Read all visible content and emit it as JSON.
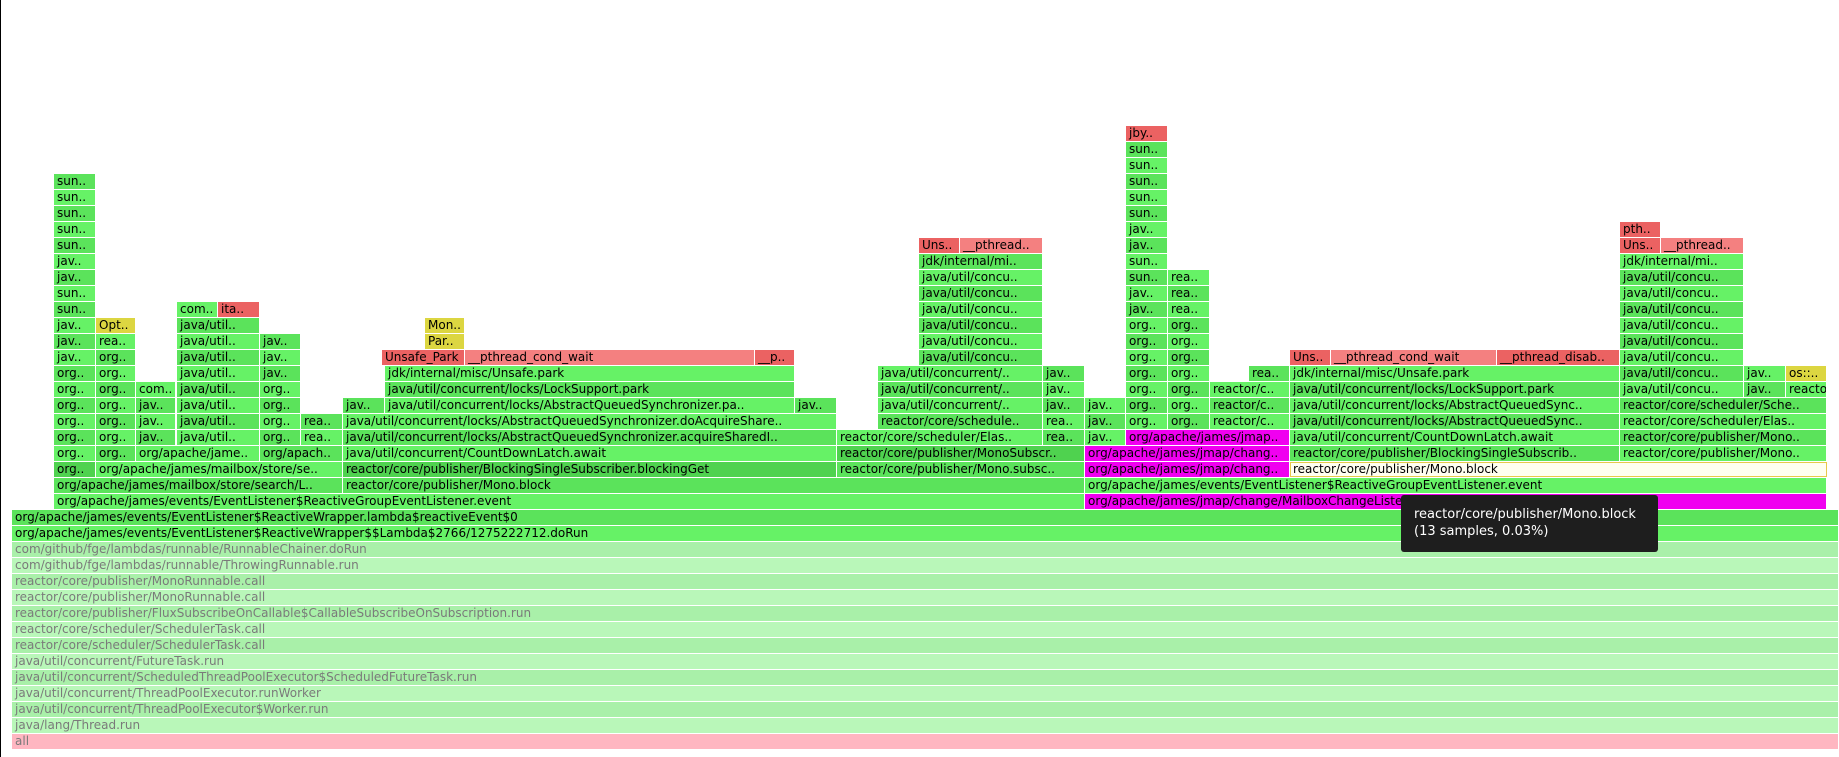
{
  "colors": {
    "G1": "#66f266",
    "G2": "#5be35b",
    "G3": "#4fd24f",
    "Y": "#dcd641",
    "R": "#eb6262",
    "LR": "#f48080",
    "M": "#f000f0",
    "P1": "#a9f0a9",
    "P2": "#b9f7b9",
    "PK": "#ffb6c1",
    "S": "#fffff0"
  },
  "tooltip": {
    "title": "reactor/core/publisher/Mono.block",
    "detail": "(13 samples, 0.03%)"
  },
  "frames": [
    [
      "all",
      12,
      1827,
      0,
      "PK",
      1
    ],
    [
      "java/lang/Thread.run",
      12,
      1827,
      1,
      "P2",
      1
    ],
    [
      "java/util/concurrent/ThreadPoolExecutor$Worker.run",
      12,
      1827,
      2,
      "P1",
      1
    ],
    [
      "java/util/concurrent/ThreadPoolExecutor.runWorker",
      12,
      1827,
      3,
      "P2",
      1
    ],
    [
      "java/util/concurrent/ScheduledThreadPoolExecutor$ScheduledFutureTask.run",
      12,
      1827,
      4,
      "P1",
      1
    ],
    [
      "java/util/concurrent/FutureTask.run",
      12,
      1827,
      5,
      "P2",
      1
    ],
    [
      "reactor/core/scheduler/SchedulerTask.call",
      12,
      1827,
      6,
      "P1",
      1
    ],
    [
      "reactor/core/scheduler/SchedulerTask.call",
      12,
      1827,
      7,
      "P2",
      1
    ],
    [
      "reactor/core/publisher/FluxSubscribeOnCallable$CallableSubscribeOnSubscription.run",
      12,
      1827,
      8,
      "P1",
      1
    ],
    [
      "reactor/core/publisher/MonoRunnable.call",
      12,
      1827,
      9,
      "P2",
      1
    ],
    [
      "reactor/core/publisher/MonoRunnable.call",
      12,
      1827,
      10,
      "P1",
      1
    ],
    [
      "com/github/fge/lambdas/runnable/ThrowingRunnable.run",
      12,
      1827,
      11,
      "P2",
      1
    ],
    [
      "com/github/fge/lambdas/runnable/RunnableChainer.doRun",
      12,
      1827,
      12,
      "P1",
      1
    ],
    [
      "org/apache/james/events/EventListener$ReactiveWrapper$$Lambda$2766/1275222712.doRun",
      12,
      1827,
      13,
      "G1",
      0
    ],
    [
      "org/apache/james/events/EventListener$ReactiveWrapper.lambda$reactiveEvent$0",
      12,
      1827,
      14,
      "G2",
      0
    ],
    [
      "org/apache/james/events/EventListener$ReactiveGroupEventListener.event",
      54,
      1031,
      15,
      "G1",
      0
    ],
    [
      "org/apache/james/jmap/change/MailboxChangeListener.event",
      1085,
      742,
      15,
      "M",
      0
    ],
    [
      "org/apache/james/mailbox/store/search/L..",
      54,
      289,
      16,
      "G2",
      0
    ],
    [
      "reactor/core/publisher/Mono.block",
      343,
      742,
      16,
      "G2",
      0
    ],
    [
      "org/apache/james/events/EventListener$ReactiveGroupEventListener.event",
      1085,
      742,
      16,
      "G1",
      0
    ],
    [
      "org..",
      54,
      42,
      17,
      "G3",
      0
    ],
    [
      "org/apache/james/mailbox/store/se..",
      96,
      247,
      17,
      "G1",
      0
    ],
    [
      "reactor/core/publisher/BlockingSingleSubscriber.blockingGet",
      343,
      494,
      17,
      "G3",
      0
    ],
    [
      "reactor/core/publisher/Mono.subsc..",
      837,
      248,
      17,
      "G2",
      0
    ],
    [
      "org/apache/james/jmap/chang..",
      1085,
      205,
      17,
      "M",
      0
    ],
    [
      "reactor/core/publisher/Mono.block",
      1290,
      537,
      17,
      "S",
      0
    ],
    [
      "org..",
      54,
      42,
      18,
      "G1",
      0
    ],
    [
      "org..",
      96,
      40,
      18,
      "G2",
      0
    ],
    [
      "org/apache/jame..",
      136,
      124,
      18,
      "G1",
      0
    ],
    [
      "org/apach..",
      260,
      83,
      18,
      "G2",
      0
    ],
    [
      "java/util/concurrent/CountDownLatch.await",
      343,
      494,
      18,
      "G1",
      0
    ],
    [
      "reactor/core/publisher/MonoSubscr..",
      837,
      248,
      18,
      "G3",
      0
    ],
    [
      "org/apache/james/jmap/chang..",
      1085,
      205,
      18,
      "M",
      0
    ],
    [
      "reactor/core/publisher/BlockingSingleSubscrib..",
      1290,
      330,
      18,
      "G2",
      0
    ],
    [
      "reactor/core/publisher/Mono..",
      1620,
      207,
      18,
      "G1",
      0
    ],
    [
      "org..",
      54,
      42,
      19,
      "G2",
      0
    ],
    [
      "org..",
      96,
      40,
      19,
      "G1",
      0
    ],
    [
      "jav..",
      136,
      40,
      19,
      "G2",
      0
    ],
    [
      "java/util..",
      177,
      83,
      19,
      "G1",
      0
    ],
    [
      "org..",
      260,
      41,
      19,
      "G2",
      0
    ],
    [
      "rea..",
      301,
      42,
      19,
      "G1",
      0
    ],
    [
      "java/util/concurrent/locks/AbstractQueuedSynchronizer.acquireSharedI..",
      343,
      494,
      19,
      "G2",
      0
    ],
    [
      "reactor/core/scheduler/Elas..",
      837,
      206,
      19,
      "G1",
      0
    ],
    [
      "rea..",
      1043,
      42,
      19,
      "G2",
      0
    ],
    [
      "jav..",
      1085,
      41,
      19,
      "G1",
      0
    ],
    [
      "org/apache/james/jmap..",
      1126,
      164,
      19,
      "M",
      0
    ],
    [
      "java/util/concurrent/CountDownLatch.await",
      1290,
      330,
      19,
      "G1",
      0
    ],
    [
      "reactor/core/publisher/Mono..",
      1620,
      207,
      19,
      "G2",
      0
    ],
    [
      "org..",
      54,
      42,
      20,
      "G1",
      0
    ],
    [
      "org..",
      96,
      40,
      20,
      "G2",
      0
    ],
    [
      "jav..",
      136,
      40,
      20,
      "G1",
      0
    ],
    [
      "java/util..",
      177,
      83,
      20,
      "G2",
      0
    ],
    [
      "org..",
      260,
      41,
      20,
      "G1",
      0
    ],
    [
      "rea..",
      301,
      42,
      20,
      "G2",
      0
    ],
    [
      "java/util/concurrent/locks/AbstractQueuedSynchronizer.doAcquireShare..",
      343,
      494,
      20,
      "G1",
      0
    ],
    [
      "reactor/core/schedule..",
      878,
      165,
      20,
      "G2",
      0
    ],
    [
      "rea..",
      1043,
      42,
      20,
      "G1",
      0
    ],
    [
      "jav..",
      1085,
      41,
      20,
      "G2",
      0
    ],
    [
      "org..",
      1126,
      42,
      20,
      "G1",
      0
    ],
    [
      "org..",
      1168,
      42,
      20,
      "G2",
      0
    ],
    [
      "reactor/c..",
      1210,
      80,
      20,
      "G1",
      0
    ],
    [
      "java/util/concurrent/locks/AbstractQueuedSync..",
      1290,
      330,
      20,
      "G2",
      0
    ],
    [
      "reactor/core/scheduler/Elas..",
      1620,
      207,
      20,
      "G1",
      0
    ],
    [
      "org..",
      54,
      42,
      21,
      "G2",
      0
    ],
    [
      "org..",
      96,
      40,
      21,
      "G1",
      0
    ],
    [
      "jav..",
      136,
      40,
      21,
      "G2",
      0
    ],
    [
      "java/util..",
      177,
      83,
      21,
      "G1",
      0
    ],
    [
      "org..",
      260,
      41,
      21,
      "G2",
      0
    ],
    [
      "jav..",
      343,
      42,
      21,
      "G2",
      0
    ],
    [
      "java/util/concurrent/locks/AbstractQueuedSynchronizer.pa..",
      385,
      410,
      21,
      "G1",
      0
    ],
    [
      "jav..",
      795,
      42,
      21,
      "G2",
      0
    ],
    [
      "java/util/concurrent/..",
      878,
      165,
      21,
      "G1",
      0
    ],
    [
      "jav..",
      1043,
      42,
      21,
      "G2",
      0
    ],
    [
      "jav..",
      1085,
      41,
      21,
      "G1",
      0
    ],
    [
      "org..",
      1126,
      42,
      21,
      "G2",
      0
    ],
    [
      "org..",
      1168,
      42,
      21,
      "G1",
      0
    ],
    [
      "reactor/c..",
      1210,
      80,
      21,
      "G2",
      0
    ],
    [
      "java/util/concurrent/locks/AbstractQueuedSync..",
      1290,
      330,
      21,
      "G1",
      0
    ],
    [
      "reactor/core/scheduler/Sche..",
      1620,
      207,
      21,
      "G2",
      0
    ],
    [
      "org..",
      54,
      42,
      22,
      "G1",
      0
    ],
    [
      "org..",
      96,
      40,
      22,
      "G2",
      0
    ],
    [
      "com..",
      136,
      40,
      22,
      "G1",
      0
    ],
    [
      "java/util..",
      177,
      83,
      22,
      "G2",
      0
    ],
    [
      "org..",
      260,
      41,
      22,
      "G1",
      0
    ],
    [
      "java/util/concurrent/locks/LockSupport.park",
      385,
      410,
      22,
      "G2",
      0
    ],
    [
      "java/util/concurrent/..",
      878,
      165,
      22,
      "G2",
      0
    ],
    [
      "jav..",
      1043,
      42,
      22,
      "G1",
      0
    ],
    [
      "org..",
      1126,
      42,
      22,
      "G1",
      0
    ],
    [
      "org..",
      1168,
      42,
      22,
      "G2",
      0
    ],
    [
      "reactor/c..",
      1210,
      80,
      22,
      "G1",
      0
    ],
    [
      "java/util/concurrent/locks/LockSupport.park",
      1290,
      330,
      22,
      "G2",
      0
    ],
    [
      "java/util/concu..",
      1620,
      124,
      22,
      "G1",
      0
    ],
    [
      "jav..",
      1744,
      42,
      22,
      "G2",
      0
    ],
    [
      "reactor/c..",
      1786,
      41,
      22,
      "G1",
      0
    ],
    [
      "org..",
      54,
      42,
      23,
      "G2",
      0
    ],
    [
      "org..",
      96,
      40,
      23,
      "G1",
      0
    ],
    [
      "java/util..",
      177,
      83,
      23,
      "G1",
      0
    ],
    [
      "jav..",
      260,
      41,
      23,
      "G2",
      0
    ],
    [
      "jdk/internal/misc/Unsafe.park",
      385,
      410,
      23,
      "G1",
      0
    ],
    [
      "java/util/concurrent/..",
      878,
      165,
      23,
      "G1",
      0
    ],
    [
      "jav..",
      1043,
      42,
      23,
      "G2",
      0
    ],
    [
      "org..",
      1126,
      42,
      23,
      "G2",
      0
    ],
    [
      "org..",
      1168,
      42,
      23,
      "G1",
      0
    ],
    [
      "rea..",
      1249,
      41,
      23,
      "G2",
      0
    ],
    [
      "jdk/internal/misc/Unsafe.park",
      1290,
      330,
      23,
      "G1",
      0
    ],
    [
      "java/util/concu..",
      1620,
      124,
      23,
      "G2",
      0
    ],
    [
      "jav..",
      1744,
      42,
      23,
      "G1",
      0
    ],
    [
      "os::..",
      1786,
      41,
      23,
      "Y",
      0
    ],
    [
      "jav..",
      54,
      42,
      24,
      "G1",
      0
    ],
    [
      "org..",
      96,
      40,
      24,
      "G2",
      0
    ],
    [
      "java/util..",
      177,
      83,
      24,
      "G2",
      0
    ],
    [
      "jav..",
      260,
      41,
      24,
      "G1",
      0
    ],
    [
      "Unsafe_Park",
      382,
      83,
      24,
      "R",
      0
    ],
    [
      "__pthread_cond_wait",
      465,
      290,
      24,
      "LR",
      0
    ],
    [
      "__p..",
      755,
      40,
      24,
      "R",
      0
    ],
    [
      "java/util/concu..",
      919,
      124,
      24,
      "G2",
      0
    ],
    [
      "org..",
      1126,
      42,
      24,
      "G1",
      0
    ],
    [
      "org..",
      1168,
      42,
      24,
      "G2",
      0
    ],
    [
      "Uns..",
      1290,
      41,
      24,
      "R",
      0
    ],
    [
      "__pthread_cond_wait",
      1331,
      166,
      24,
      "LR",
      0
    ],
    [
      "__pthread_disab..",
      1497,
      123,
      24,
      "R",
      0
    ],
    [
      "java/util/concu..",
      1620,
      124,
      24,
      "G1",
      0
    ],
    [
      "jav..",
      54,
      42,
      25,
      "G2",
      0
    ],
    [
      "rea..",
      96,
      40,
      25,
      "G1",
      0
    ],
    [
      "java/util..",
      177,
      83,
      25,
      "G1",
      0
    ],
    [
      "jav..",
      260,
      41,
      25,
      "G2",
      0
    ],
    [
      "Par..",
      425,
      40,
      25,
      "Y",
      0
    ],
    [
      "java/util/concu..",
      919,
      124,
      25,
      "G1",
      0
    ],
    [
      "org..",
      1126,
      42,
      25,
      "G2",
      0
    ],
    [
      "org..",
      1168,
      42,
      25,
      "G1",
      0
    ],
    [
      "java/util/concu..",
      1620,
      124,
      25,
      "G2",
      0
    ],
    [
      "jav..",
      54,
      42,
      26,
      "G1",
      0
    ],
    [
      "Opt..",
      96,
      40,
      26,
      "Y",
      0
    ],
    [
      "java/util..",
      177,
      83,
      26,
      "G2",
      0
    ],
    [
      "Mon..",
      425,
      40,
      26,
      "Y",
      0
    ],
    [
      "java/util/concu..",
      919,
      124,
      26,
      "G2",
      0
    ],
    [
      "org..",
      1126,
      42,
      26,
      "G1",
      0
    ],
    [
      "org..",
      1168,
      42,
      26,
      "G2",
      0
    ],
    [
      "java/util/concu..",
      1620,
      124,
      26,
      "G1",
      0
    ],
    [
      "sun..",
      54,
      42,
      27,
      "G2",
      0
    ],
    [
      "com..",
      177,
      41,
      27,
      "G1",
      0
    ],
    [
      "ita..",
      218,
      42,
      27,
      "R",
      0
    ],
    [
      "java/util/concu..",
      919,
      124,
      27,
      "G1",
      0
    ],
    [
      "jav..",
      1126,
      42,
      27,
      "G2",
      0
    ],
    [
      "rea..",
      1168,
      42,
      27,
      "G1",
      0
    ],
    [
      "java/util/concu..",
      1620,
      124,
      27,
      "G2",
      0
    ],
    [
      "sun..",
      54,
      42,
      28,
      "G1",
      0
    ],
    [
      "java/util/concu..",
      919,
      124,
      28,
      "G2",
      0
    ],
    [
      "jav..",
      1126,
      42,
      28,
      "G1",
      0
    ],
    [
      "rea..",
      1168,
      42,
      28,
      "G2",
      0
    ],
    [
      "java/util/concu..",
      1620,
      124,
      28,
      "G1",
      0
    ],
    [
      "jav..",
      54,
      42,
      29,
      "G2",
      0
    ],
    [
      "java/util/concu..",
      919,
      124,
      29,
      "G1",
      0
    ],
    [
      "sun..",
      1126,
      42,
      29,
      "G2",
      0
    ],
    [
      "rea..",
      1168,
      42,
      29,
      "G1",
      0
    ],
    [
      "java/util/concu..",
      1620,
      124,
      29,
      "G2",
      0
    ],
    [
      "jav..",
      54,
      42,
      30,
      "G1",
      0
    ],
    [
      "jdk/internal/mi..",
      919,
      124,
      30,
      "G2",
      0
    ],
    [
      "sun..",
      1126,
      42,
      30,
      "G1",
      0
    ],
    [
      "jdk/internal/mi..",
      1620,
      124,
      30,
      "G1",
      0
    ],
    [
      "sun..",
      54,
      42,
      31,
      "G2",
      0
    ],
    [
      "Uns..",
      919,
      41,
      31,
      "R",
      0
    ],
    [
      "__pthread..",
      960,
      83,
      31,
      "LR",
      0
    ],
    [
      "jav..",
      1126,
      42,
      31,
      "G2",
      0
    ],
    [
      "Uns..",
      1620,
      41,
      31,
      "R",
      0
    ],
    [
      "__pthread..",
      1661,
      83,
      31,
      "LR",
      0
    ],
    [
      "sun..",
      54,
      42,
      32,
      "G1",
      0
    ],
    [
      "jav..",
      1126,
      42,
      32,
      "G1",
      0
    ],
    [
      "pth..",
      1620,
      41,
      32,
      "R",
      0
    ],
    [
      "sun..",
      54,
      42,
      33,
      "G2",
      0
    ],
    [
      "sun..",
      1126,
      42,
      33,
      "G2",
      0
    ],
    [
      "sun..",
      54,
      42,
      34,
      "G1",
      0
    ],
    [
      "sun..",
      1126,
      42,
      34,
      "G1",
      0
    ],
    [
      "sun..",
      54,
      42,
      35,
      "G2",
      0
    ],
    [
      "sun..",
      1126,
      42,
      35,
      "G2",
      0
    ],
    [
      "sun..",
      1126,
      42,
      36,
      "G1",
      0
    ],
    [
      "sun..",
      1126,
      42,
      37,
      "G2",
      0
    ],
    [
      "jby..",
      1126,
      42,
      38,
      "R",
      0
    ]
  ]
}
